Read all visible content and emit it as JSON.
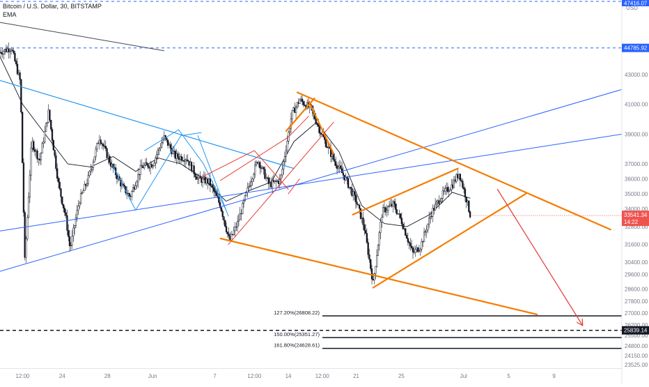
{
  "chart_data": {
    "type": "candlestick",
    "header": {
      "symbol": "Bitcoin / U.S. Dollar, 30, BITSTAMP",
      "indicator": "EMA"
    },
    "ylim": [
      23300,
      48000
    ],
    "xlim_days": [
      0,
      55
    ],
    "price_axis": {
      "ticks": [
        43000,
        41000,
        39000,
        37000,
        36000,
        35000,
        34000,
        32800,
        31600,
        30400,
        29600,
        28600,
        27800,
        27000,
        26200,
        25500,
        24800,
        24150,
        23525
      ],
      "tick_labels": [
        "43000.00",
        "41000.00",
        "39000.00",
        "37000.00",
        "36000.00",
        "35000.00",
        "34000.00",
        "32800.00",
        "31600.00",
        "30400.00",
        "29600.00",
        "28600.00",
        "27800.00",
        "27000.00",
        "26200.00",
        "25500.00",
        "24800.00",
        "24150.00",
        "23525.00"
      ],
      "currency": "USD",
      "top_badge": "47416.07"
    },
    "time_axis": {
      "labels": [
        {
          "day": 2.0,
          "text": "12:00"
        },
        {
          "day": 5.5,
          "text": "24"
        },
        {
          "day": 9.5,
          "text": "28"
        },
        {
          "day": 13.5,
          "text": "Jun"
        },
        {
          "day": 19.0,
          "text": "7"
        },
        {
          "day": 22.5,
          "text": "12:00"
        },
        {
          "day": 25.5,
          "text": "14"
        },
        {
          "day": 28.5,
          "text": "12:00"
        },
        {
          "day": 31.5,
          "text": "21"
        },
        {
          "day": 35.5,
          "text": "25"
        },
        {
          "day": 41.0,
          "text": "Jul"
        },
        {
          "day": 45.0,
          "text": "5"
        },
        {
          "day": 49.0,
          "text": "9"
        }
      ]
    },
    "current_price": {
      "value": 33541.34,
      "label": "33541.34",
      "countdown": "14:22",
      "color": "#ef5350"
    },
    "resistance_line": {
      "value": 44785.92,
      "label": "44785.92",
      "color": "#2962ff"
    },
    "support_line": {
      "value": 25839.14,
      "label": "25839.14"
    },
    "fib_levels": [
      {
        "label": "127.20%(26808.22)",
        "value": 26808.22
      },
      {
        "label": "150.00%(25351.27)",
        "value": 25351.27
      },
      {
        "label": "161.80%(24628.61)",
        "value": 24628.61
      }
    ],
    "price_path": [
      [
        0,
        44500
      ],
      [
        1,
        44800
      ],
      [
        1.8,
        42500
      ],
      [
        2.2,
        30500
      ],
      [
        2.8,
        38500
      ],
      [
        3.5,
        37200
      ],
      [
        4.3,
        40500
      ],
      [
        5.2,
        35500
      ],
      [
        5.8,
        33500
      ],
      [
        6.2,
        31300
      ],
      [
        7.0,
        34500
      ],
      [
        7.8,
        36000
      ],
      [
        8.8,
        38800
      ],
      [
        9.8,
        37000
      ],
      [
        10.8,
        35500
      ],
      [
        11.5,
        34800
      ],
      [
        12.5,
        36800
      ],
      [
        13.5,
        37000
      ],
      [
        14.5,
        38800
      ],
      [
        15.5,
        37500
      ],
      [
        16.5,
        37400
      ],
      [
        17.5,
        36000
      ],
      [
        18.5,
        35800
      ],
      [
        19.5,
        34200
      ],
      [
        20.3,
        31800
      ],
      [
        21.0,
        33000
      ],
      [
        22.0,
        35500
      ],
      [
        22.8,
        37300
      ],
      [
        23.8,
        35600
      ],
      [
        24.8,
        35900
      ],
      [
        25.8,
        40300
      ],
      [
        26.5,
        41300
      ],
      [
        27.5,
        40700
      ],
      [
        28.5,
        38900
      ],
      [
        29.5,
        37300
      ],
      [
        30.5,
        36100
      ],
      [
        31.5,
        34500
      ],
      [
        32.2,
        32800
      ],
      [
        33.0,
        29000
      ],
      [
        33.8,
        33800
      ],
      [
        34.8,
        34300
      ],
      [
        35.5,
        33200
      ],
      [
        36.5,
        31000
      ],
      [
        37.2,
        31500
      ],
      [
        38.2,
        33800
      ],
      [
        39.2,
        35000
      ],
      [
        40.0,
        35600
      ],
      [
        40.6,
        36400
      ],
      [
        41.2,
        34800
      ],
      [
        41.6,
        33541
      ]
    ],
    "ema_path": [
      [
        0,
        44200
      ],
      [
        2,
        41000
      ],
      [
        4,
        39000
      ],
      [
        6,
        37000
      ],
      [
        8,
        36800
      ],
      [
        10,
        37500
      ],
      [
        12,
        36500
      ],
      [
        14,
        37400
      ],
      [
        16,
        37000
      ],
      [
        18,
        36000
      ],
      [
        20,
        34500
      ],
      [
        22,
        35200
      ],
      [
        24,
        35800
      ],
      [
        26,
        38500
      ],
      [
        28,
        39800
      ],
      [
        30,
        37800
      ],
      [
        32,
        34200
      ],
      [
        34,
        33000
      ],
      [
        36,
        32800
      ],
      [
        38,
        33600
      ],
      [
        40,
        35100
      ],
      [
        41.6,
        34700
      ]
    ],
    "drawings": [
      {
        "name": "dark-trendline",
        "color": "#434651",
        "width": 1,
        "points": [
          [
            0,
            46500
          ],
          [
            14.5,
            44600
          ]
        ]
      },
      {
        "name": "blue-trendline-upper-descending",
        "color": "#2196f3",
        "width": 1.2,
        "points": [
          [
            0,
            42600
          ],
          [
            26,
            36700
          ]
        ]
      },
      {
        "name": "blue-trendline-rising-1",
        "color": "#2962ff",
        "width": 1,
        "points": [
          [
            0,
            29800
          ],
          [
            55,
            42000
          ]
        ]
      },
      {
        "name": "blue-trendline-rising-2",
        "color": "#2962ff",
        "width": 1,
        "points": [
          [
            0,
            32500
          ],
          [
            55,
            39000
          ]
        ]
      },
      {
        "name": "blue-zigzag-1",
        "color": "#2196f3",
        "width": 1,
        "points": [
          [
            10,
            36800
          ],
          [
            12,
            33900
          ],
          [
            16,
            38900
          ],
          [
            17.8,
            39100
          ]
        ]
      },
      {
        "name": "blue-zigzag-2",
        "color": "#2196f3",
        "width": 1,
        "points": [
          [
            12.8,
            37900
          ],
          [
            15.8,
            39300
          ],
          [
            18,
            37000
          ],
          [
            20,
            33900
          ]
        ]
      },
      {
        "name": "blue-connector",
        "color": "#2196f3",
        "width": 1,
        "points": [
          [
            17.5,
            38900
          ],
          [
            20.2,
            33500
          ]
        ]
      },
      {
        "name": "red-zigzag-1",
        "color": "#e53935",
        "width": 1,
        "points": [
          [
            17.8,
            36100
          ],
          [
            22.5,
            37900
          ],
          [
            25.5,
            35300
          ]
        ]
      },
      {
        "name": "red-zigzag-2",
        "color": "#e53935",
        "width": 1,
        "points": [
          [
            19.5,
            35900
          ],
          [
            25.5,
            38800
          ],
          [
            27.3,
            40200
          ]
        ]
      },
      {
        "name": "red-diagonal-1",
        "color": "#e53935",
        "width": 1,
        "points": [
          [
            20.2,
            31600
          ],
          [
            29.5,
            39800
          ]
        ]
      },
      {
        "name": "red-diagonal-2",
        "color": "#e53935",
        "width": 1,
        "points": [
          [
            25.5,
            35000
          ],
          [
            26.5,
            36000
          ]
        ]
      },
      {
        "name": "orange-descending-top",
        "color": "#f57c00",
        "width": 2.2,
        "points": [
          [
            26.3,
            41800
          ],
          [
            54,
            32600
          ]
        ]
      },
      {
        "name": "orange-descending-bottom",
        "color": "#f57c00",
        "width": 2.2,
        "points": [
          [
            19.5,
            32000
          ],
          [
            47.5,
            26900
          ]
        ]
      },
      {
        "name": "orange-rising-channel",
        "color": "#f57c00",
        "width": 2.2,
        "points": [
          [
            31.2,
            33600
          ],
          [
            40.5,
            36700
          ]
        ]
      },
      {
        "name": "orange-rising-lower",
        "color": "#f57c00",
        "width": 2.2,
        "points": [
          [
            33,
            28700
          ],
          [
            46.5,
            35000
          ]
        ]
      },
      {
        "name": "orange-short-top",
        "color": "#f57c00",
        "width": 2.2,
        "points": [
          [
            25.3,
            39200
          ],
          [
            27.8,
            41400
          ]
        ]
      },
      {
        "name": "orange-short-diag",
        "color": "#f57c00",
        "width": 2.2,
        "points": [
          [
            27.3,
            41200
          ],
          [
            29.5,
            37700
          ]
        ]
      },
      {
        "name": "red-projection-arrow",
        "color": "#e53935",
        "width": 1.2,
        "arrow": true,
        "points": [
          [
            44,
            35300
          ],
          [
            51.5,
            26200
          ]
        ]
      }
    ]
  }
}
